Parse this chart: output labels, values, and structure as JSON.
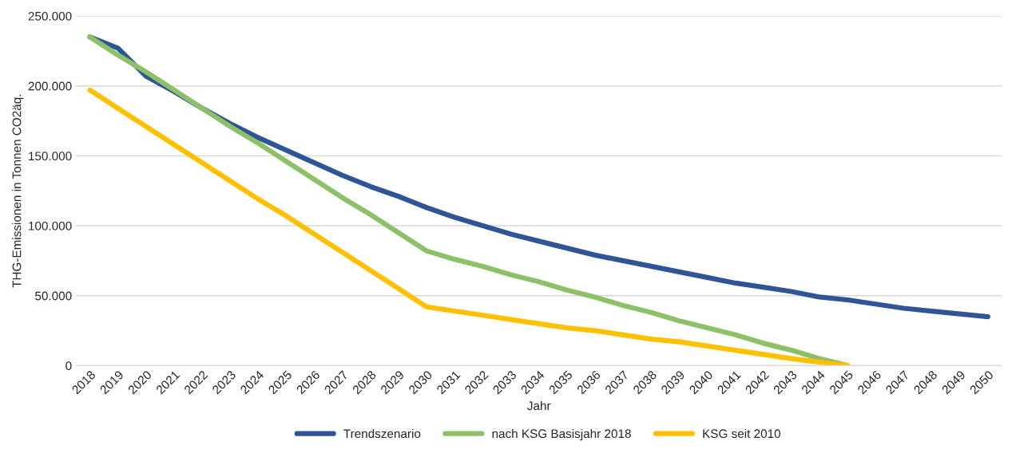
{
  "chart_data": {
    "type": "line",
    "xlabel": "Jahr",
    "ylabel": "THG-Emissionen in Tonnen CO2äq.",
    "categories": [
      "2018",
      "2019",
      "2020",
      "2021",
      "2022",
      "2023",
      "2024",
      "2025",
      "2026",
      "2027",
      "2028",
      "2029",
      "2030",
      "2031",
      "2032",
      "2033",
      "2034",
      "2035",
      "2036",
      "2037",
      "2038",
      "2039",
      "2040",
      "2041",
      "2042",
      "2043",
      "2044",
      "2045",
      "2046",
      "2047",
      "2048",
      "2049",
      "2050"
    ],
    "series": [
      {
        "name": "Trendszenario",
        "color": "#2f5597",
        "values": [
          235000,
          227000,
          207000,
          196000,
          184000,
          173000,
          163000,
          154000,
          145000,
          136000,
          128000,
          121000,
          113000,
          106000,
          100000,
          94000,
          89000,
          84000,
          79000,
          75000,
          71000,
          67000,
          63000,
          59000,
          56000,
          53000,
          49000,
          47000,
          44000,
          41000,
          39000,
          37000,
          35000
        ]
      },
      {
        "name": "nach KSG Basisjahr 2018",
        "color": "#8cc168",
        "values": [
          235000,
          222000,
          210000,
          197000,
          184000,
          171000,
          159000,
          146000,
          133000,
          120000,
          108000,
          95000,
          82000,
          76000,
          71000,
          65000,
          60000,
          54000,
          49000,
          43000,
          38000,
          32000,
          27000,
          22000,
          16000,
          11000,
          5000,
          0,
          null,
          null,
          null,
          null,
          null
        ]
      },
      {
        "name": "KSG seit 2010",
        "color": "#ffc000",
        "values": [
          197000,
          184000,
          171000,
          158000,
          145000,
          132000,
          119000,
          107000,
          94000,
          81000,
          68000,
          55000,
          42000,
          39000,
          36000,
          33000,
          30000,
          27000,
          25000,
          22000,
          19000,
          17000,
          14000,
          11000,
          8000,
          5000,
          2500,
          0,
          null,
          null,
          null,
          null,
          null
        ]
      }
    ],
    "ylim": [
      0,
      250000
    ],
    "yticks": [
      {
        "value": 0,
        "label": "0"
      },
      {
        "value": 50000,
        "label": "50.000"
      },
      {
        "value": 100000,
        "label": "100.000"
      },
      {
        "value": 150000,
        "label": "150.000"
      },
      {
        "value": 200000,
        "label": "200.000"
      },
      {
        "value": 250000,
        "label": "250.000"
      }
    ],
    "grid": "y",
    "legend": "bottom",
    "marker": "none",
    "line_style": "solid"
  }
}
